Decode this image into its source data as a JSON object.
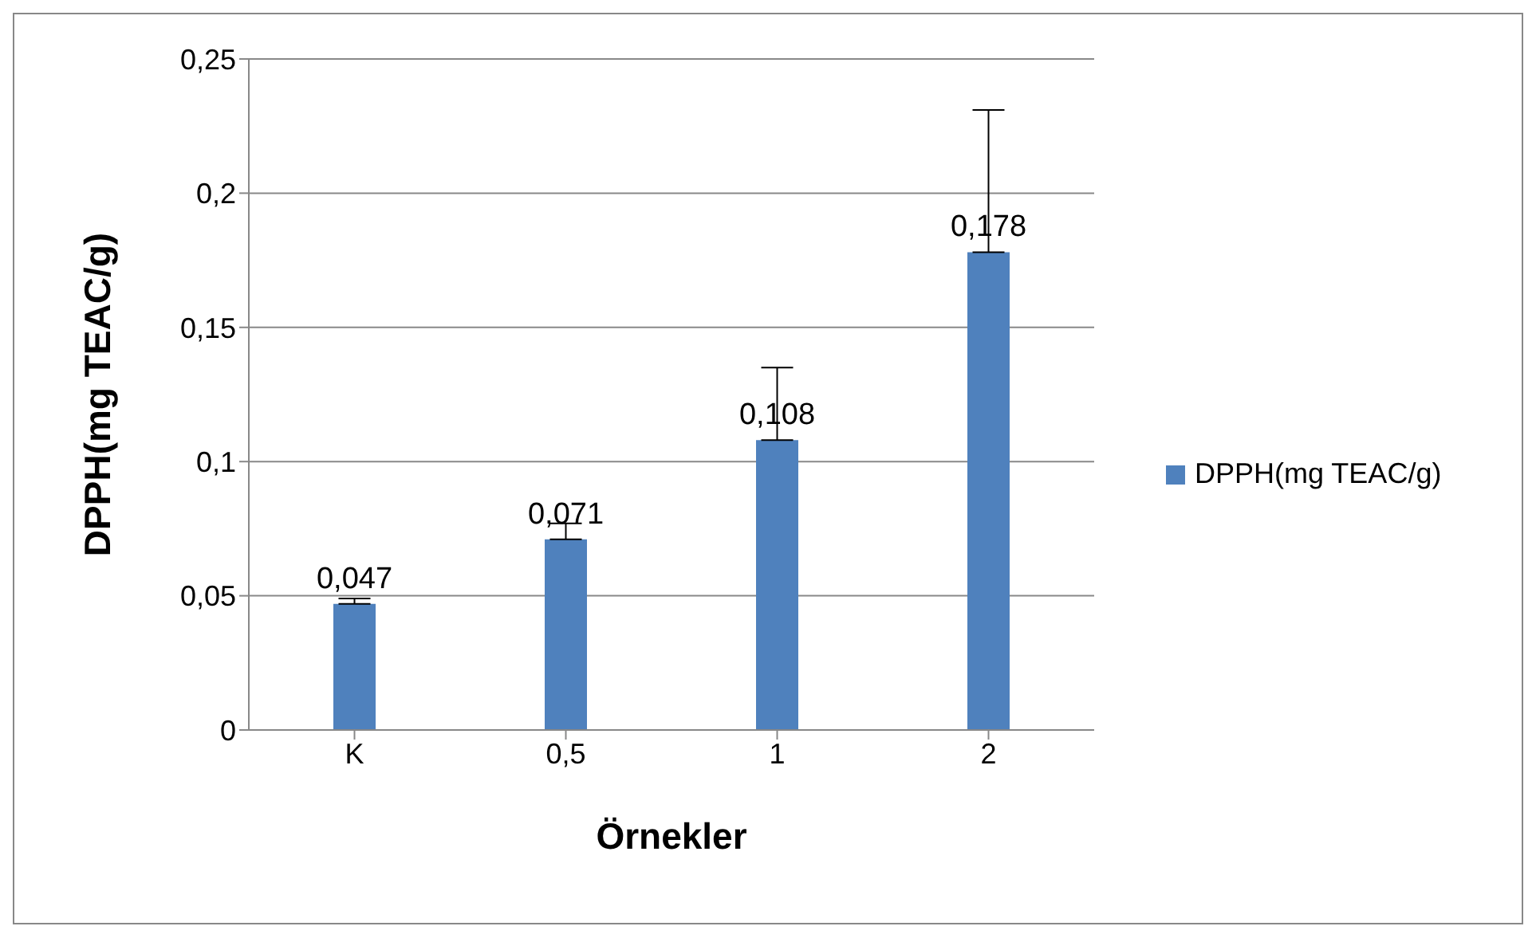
{
  "chart_data": {
    "type": "bar",
    "xlabel": "Örnekler",
    "ylabel": "DPPH(mg TEAC/g)",
    "categories": [
      "K",
      "0,5",
      "1",
      "2"
    ],
    "series": [
      {
        "name": "DPPH(mg TEAC/g)",
        "color": "#4f81bd",
        "values": [
          0.047,
          0.071,
          0.108,
          0.178
        ],
        "value_labels": [
          "0,047",
          "0,071",
          "0,108",
          "0,178"
        ],
        "errors": [
          [
            0.047,
            0.049
          ],
          [
            0.071,
            0.077
          ],
          [
            0.108,
            0.135
          ],
          [
            0.178,
            0.231
          ]
        ]
      }
    ],
    "ylim": [
      0,
      0.25
    ],
    "yticks": [
      0,
      {
        "value": 0.05,
        "label": "0,05"
      },
      {
        "value": 0.1,
        "label": "0,1"
      },
      {
        "value": 0.15,
        "label": "0,15"
      },
      {
        "value": 0.2,
        "label": "0,2"
      },
      {
        "value": 0.25,
        "label": "0,25"
      }
    ],
    "grid": "y",
    "legend": "right"
  }
}
